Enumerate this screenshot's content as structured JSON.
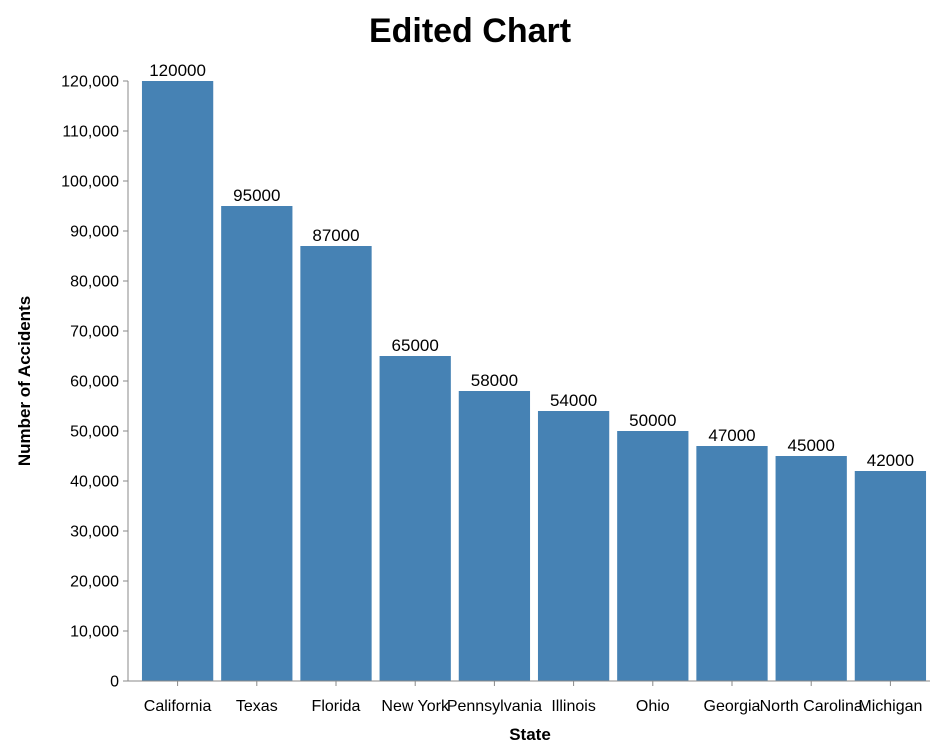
{
  "chart_data": {
    "type": "bar",
    "title": "Edited Chart",
    "xlabel": "State",
    "ylabel": "Number of Accidents",
    "categories": [
      "California",
      "Texas",
      "Florida",
      "New York",
      "Pennsylvania",
      "Illinois",
      "Ohio",
      "Georgia",
      "North Carolina",
      "Michigan"
    ],
    "values": [
      120000,
      95000,
      87000,
      65000,
      58000,
      54000,
      50000,
      47000,
      45000,
      42000
    ],
    "ylim": [
      0,
      120000
    ],
    "yticks": [
      "0",
      "10,000",
      "20,000",
      "30,000",
      "40,000",
      "50,000",
      "60,000",
      "70,000",
      "80,000",
      "90,000",
      "100,000",
      "110,000",
      "120,000"
    ],
    "grid": false,
    "bar_color": "#4682b4"
  }
}
